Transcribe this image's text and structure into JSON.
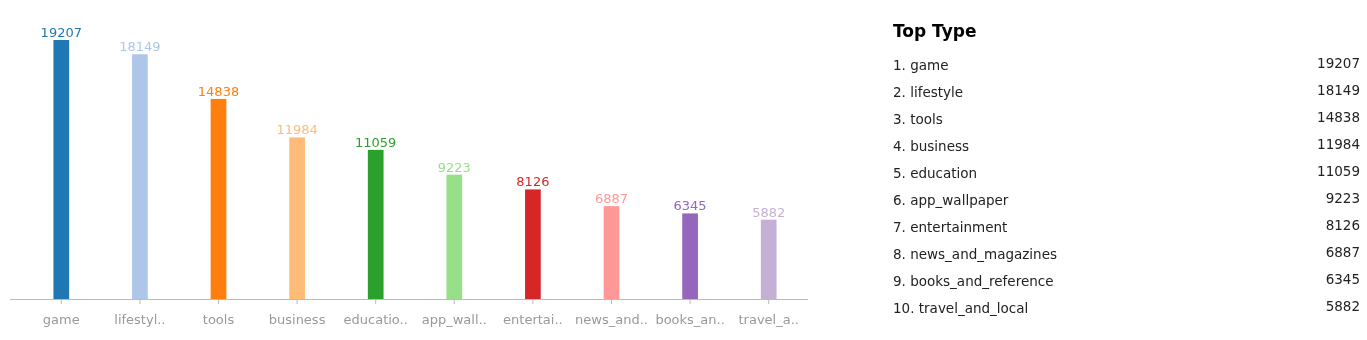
{
  "chart_data": [
    {
      "type": "bar",
      "categories": [
        "game",
        "lifestyl..",
        "tools",
        "business",
        "educatio..",
        "app_wall..",
        "entertai..",
        "news_and..",
        "books_an..",
        "travel_a.."
      ],
      "values": [
        19207,
        18149,
        14838,
        11984,
        11059,
        9223,
        8126,
        6887,
        6345,
        5882
      ],
      "colors": [
        "#1f77b4",
        "#aec7e8",
        "#ff7f0e",
        "#ffbb78",
        "#2ca02c",
        "#98df8a",
        "#d62728",
        "#ff9896",
        "#9467bd",
        "#c5b0d5"
      ],
      "data_labels": true
    },
    {
      "type": "other",
      "title": "Top Type",
      "categories": [
        "1. game",
        "2. lifestyle",
        "3. tools",
        "4. business",
        "5. education",
        "6. app_wallpaper",
        "7. entertainment",
        "8. news_and_magazines",
        "9. books_and_reference",
        "10. travel_and_local"
      ],
      "values": [
        19207,
        18149,
        14838,
        11984,
        11059,
        9223,
        8126,
        6887,
        6345,
        5882
      ],
      "data_labels": true
    }
  ]
}
